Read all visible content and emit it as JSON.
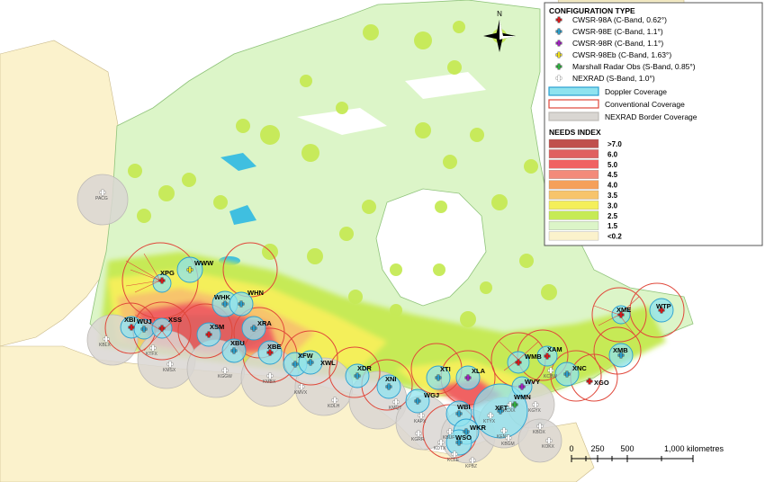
{
  "legend": {
    "config_title": "CONFIGURATION TYPE",
    "config_items": [
      {
        "label": "CWSR-98A (C-Band, 0.62°)",
        "symbol": "cross",
        "color": "#d7191c"
      },
      {
        "label": "CWSR-98E (C-Band, 1.1°)",
        "symbol": "cross",
        "color": "#2b9ec9"
      },
      {
        "label": "CWSR-98R (C-Band, 1.1°)",
        "symbol": "cross",
        "color": "#a020c0"
      },
      {
        "label": "CWSR-98Eb (C-Band, 1.63°)",
        "symbol": "cross",
        "color": "#f0e020"
      },
      {
        "label": "Marshall Radar Obs (S-Band, 0.85°)",
        "symbol": "cross",
        "color": "#30b040"
      },
      {
        "label": "NEXRAD (S-Band, 1.0°)",
        "symbol": "cross-outline",
        "color": "#ffffff"
      }
    ],
    "coverage_items": [
      {
        "label": "Doppler Coverage",
        "fill": "#8fe3ef",
        "stroke": "#2a9fd0"
      },
      {
        "label": "Conventional Coverage",
        "fill": "#ffffff",
        "stroke": "#e0473a"
      },
      {
        "label": "NEXRAD Border Coverage",
        "fill": "#d9d6d2",
        "stroke": "#bdbab6"
      }
    ],
    "needs_title": "NEEDS INDEX",
    "needs_items": [
      {
        "label": ">7.0",
        "color": "#c0504d"
      },
      {
        "label": "6.0",
        "color": "#e06060"
      },
      {
        "label": "5.0",
        "color": "#f06262"
      },
      {
        "label": "4.5",
        "color": "#f38a7a"
      },
      {
        "label": "4.0",
        "color": "#f5a05a"
      },
      {
        "label": "3.5",
        "color": "#f7c46c"
      },
      {
        "label": "3.0",
        "color": "#f4ef5a"
      },
      {
        "label": "2.5",
        "color": "#c6ea56"
      },
      {
        "label": "1.5",
        "color": "#dcf5c8"
      },
      {
        "label": "<0.2",
        "color": "#fbf2cc"
      }
    ]
  },
  "north_label": "N",
  "scale_bar": {
    "labels": [
      "0",
      "250",
      "500",
      "1,000 kilometres"
    ]
  },
  "radars": [
    {
      "label": "WWW",
      "type": "CWSR-98Eb"
    },
    {
      "label": "XPG",
      "type": "CWSR-98A"
    },
    {
      "label": "WHK",
      "type": "CWSR-98E"
    },
    {
      "label": "WHN",
      "type": "CWSR-98E"
    },
    {
      "label": "XBI",
      "type": "CWSR-98A"
    },
    {
      "label": "WUJ",
      "type": "CWSR-98E"
    },
    {
      "label": "XSS",
      "type": "CWSR-98A"
    },
    {
      "label": "XSM",
      "type": "CWSR-98A"
    },
    {
      "label": "XRA",
      "type": "CWSR-98E"
    },
    {
      "label": "XBU",
      "type": "CWSR-98E"
    },
    {
      "label": "XBE",
      "type": "CWSR-98A"
    },
    {
      "label": "XFW",
      "type": "CWSR-98E"
    },
    {
      "label": "XWL",
      "type": "CWSR-98E"
    },
    {
      "label": "XDR",
      "type": "CWSR-98E"
    },
    {
      "label": "XNI",
      "type": "CWSR-98E"
    },
    {
      "label": "WGJ",
      "type": "CWSR-98E"
    },
    {
      "label": "XTI",
      "type": "CWSR-98E"
    },
    {
      "label": "XLA",
      "type": "CWSR-98R"
    },
    {
      "label": "WBI",
      "type": "CWSR-98E"
    },
    {
      "label": "WKR",
      "type": "CWSR-98E"
    },
    {
      "label": "WSO",
      "type": "CWSR-98E"
    },
    {
      "label": "XFT",
      "type": "CWSR-98E"
    },
    {
      "label": "WMN",
      "type": "Marshall Radar Obs"
    },
    {
      "label": "WVY",
      "type": "CWSR-98R"
    },
    {
      "label": "XAM",
      "type": "CWSR-98A"
    },
    {
      "label": "WMB",
      "type": "CWSR-98A"
    },
    {
      "label": "XNC",
      "type": "CWSR-98E"
    },
    {
      "label": "XGO",
      "type": "CWSR-98A"
    },
    {
      "label": "XMB",
      "type": "CWSR-98E"
    },
    {
      "label": "XME",
      "type": "CWSR-98A"
    },
    {
      "label": "WTP",
      "type": "CWSR-98A"
    }
  ],
  "nexrad_sites": [
    "PACG",
    "KBLX",
    "KMSX",
    "KTFX",
    "KGGW",
    "KMBX",
    "KMVX",
    "KDLH",
    "KMQT",
    "KAPX",
    "KGRR",
    "KDTX",
    "KBUF",
    "KTYX",
    "KCXX",
    "KGYX",
    "KCBW",
    "KENX",
    "KBGM",
    "KOKX",
    "KBOX",
    "KCLE",
    "KPBZ"
  ]
}
